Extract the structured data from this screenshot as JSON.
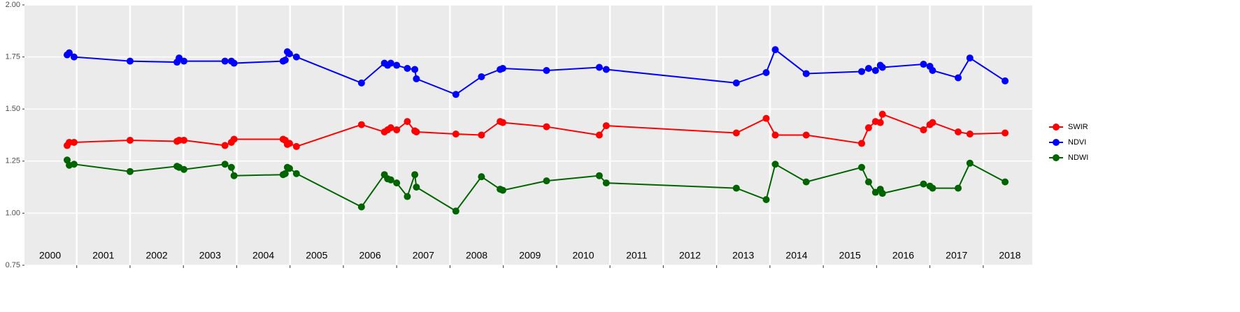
{
  "chart_data": {
    "type": "line",
    "x": [
      2000.82,
      2000.86,
      2000.95,
      2002.0,
      2002.88,
      2002.92,
      2003.01,
      2003.78,
      2003.9,
      2003.95,
      2004.87,
      2004.91,
      2004.95,
      2004.99,
      2005.12,
      2006.34,
      2006.77,
      2006.83,
      2006.89,
      2007.0,
      2007.2,
      2007.34,
      2007.37,
      2008.11,
      2008.59,
      2008.94,
      2008.99,
      2009.81,
      2010.8,
      2010.93,
      2013.37,
      2013.93,
      2014.1,
      2014.68,
      2015.72,
      2015.85,
      2015.98,
      2016.07,
      2016.11,
      2016.88,
      2017.0,
      2017.05,
      2017.53,
      2017.75,
      2018.41
    ],
    "series": [
      {
        "name": "SWIR",
        "color": "#ff0000",
        "values": [
          1.325,
          1.34,
          1.34,
          1.35,
          1.345,
          1.35,
          1.35,
          1.325,
          1.34,
          1.355,
          1.355,
          1.35,
          1.33,
          1.335,
          1.32,
          1.425,
          1.39,
          1.4,
          1.41,
          1.4,
          1.44,
          1.395,
          1.39,
          1.38,
          1.375,
          1.44,
          1.435,
          1.415,
          1.375,
          1.42,
          1.385,
          1.455,
          1.375,
          1.375,
          1.335,
          1.41,
          1.44,
          1.435,
          1.475,
          1.4,
          1.425,
          1.435,
          1.39,
          1.38,
          1.385
        ]
      },
      {
        "name": "NDVI",
        "color": "#0000ff",
        "values": [
          1.76,
          1.77,
          1.75,
          1.73,
          1.725,
          1.745,
          1.73,
          1.73,
          1.73,
          1.72,
          1.73,
          1.735,
          1.775,
          1.765,
          1.75,
          1.625,
          1.72,
          1.71,
          1.72,
          1.71,
          1.695,
          1.69,
          1.645,
          1.57,
          1.655,
          1.69,
          1.695,
          1.685,
          1.7,
          1.69,
          1.625,
          1.675,
          1.785,
          1.67,
          1.68,
          1.695,
          1.685,
          1.71,
          1.7,
          1.715,
          1.705,
          1.685,
          1.65,
          1.745,
          1.635
        ]
      },
      {
        "name": "NDWI",
        "color": "#006400",
        "values": [
          1.255,
          1.23,
          1.235,
          1.2,
          1.225,
          1.22,
          1.21,
          1.235,
          1.22,
          1.18,
          1.185,
          1.19,
          1.22,
          1.215,
          1.19,
          1.03,
          1.185,
          1.165,
          1.16,
          1.145,
          1.08,
          1.185,
          1.125,
          1.01,
          1.175,
          1.115,
          1.11,
          1.155,
          1.18,
          1.145,
          1.12,
          1.065,
          1.235,
          1.15,
          1.22,
          1.15,
          1.1,
          1.115,
          1.095,
          1.14,
          1.13,
          1.12,
          1.12,
          1.24,
          1.15
        ]
      }
    ],
    "xlim": [
      2000.02,
      2018.92
    ],
    "xticks": [
      {
        "value": 2000.5,
        "label": "2000"
      },
      {
        "value": 2001.5,
        "label": "2001"
      },
      {
        "value": 2002.5,
        "label": "2002"
      },
      {
        "value": 2003.5,
        "label": "2003"
      },
      {
        "value": 2004.5,
        "label": "2004"
      },
      {
        "value": 2005.5,
        "label": "2005"
      },
      {
        "value": 2006.5,
        "label": "2006"
      },
      {
        "value": 2007.5,
        "label": "2007"
      },
      {
        "value": 2008.5,
        "label": "2008"
      },
      {
        "value": 2009.5,
        "label": "2009"
      },
      {
        "value": 2010.5,
        "label": "2010"
      },
      {
        "value": 2011.5,
        "label": "2011"
      },
      {
        "value": 2012.5,
        "label": "2012"
      },
      {
        "value": 2013.5,
        "label": "2013"
      },
      {
        "value": 2014.5,
        "label": "2014"
      },
      {
        "value": 2015.5,
        "label": "2015"
      },
      {
        "value": 2016.5,
        "label": "2016"
      },
      {
        "value": 2017.5,
        "label": "2017"
      },
      {
        "value": 2018.5,
        "label": "2018"
      }
    ],
    "xgrid": [
      2001,
      2002,
      2003,
      2004,
      2005,
      2006,
      2007,
      2008,
      2009,
      2010,
      2011,
      2012,
      2013,
      2014,
      2015,
      2016,
      2017,
      2018
    ],
    "ylim": [
      0.75,
      2.0
    ],
    "yticks": [
      {
        "value": 0.75,
        "label": "0.75"
      },
      {
        "value": 1.0,
        "label": "1.00"
      },
      {
        "value": 1.25,
        "label": "1.25"
      },
      {
        "value": 1.5,
        "label": "1.50"
      },
      {
        "value": 1.75,
        "label": "1.75"
      },
      {
        "value": 2.0,
        "label": "2.00"
      }
    ],
    "grid": true,
    "legend": "right"
  }
}
